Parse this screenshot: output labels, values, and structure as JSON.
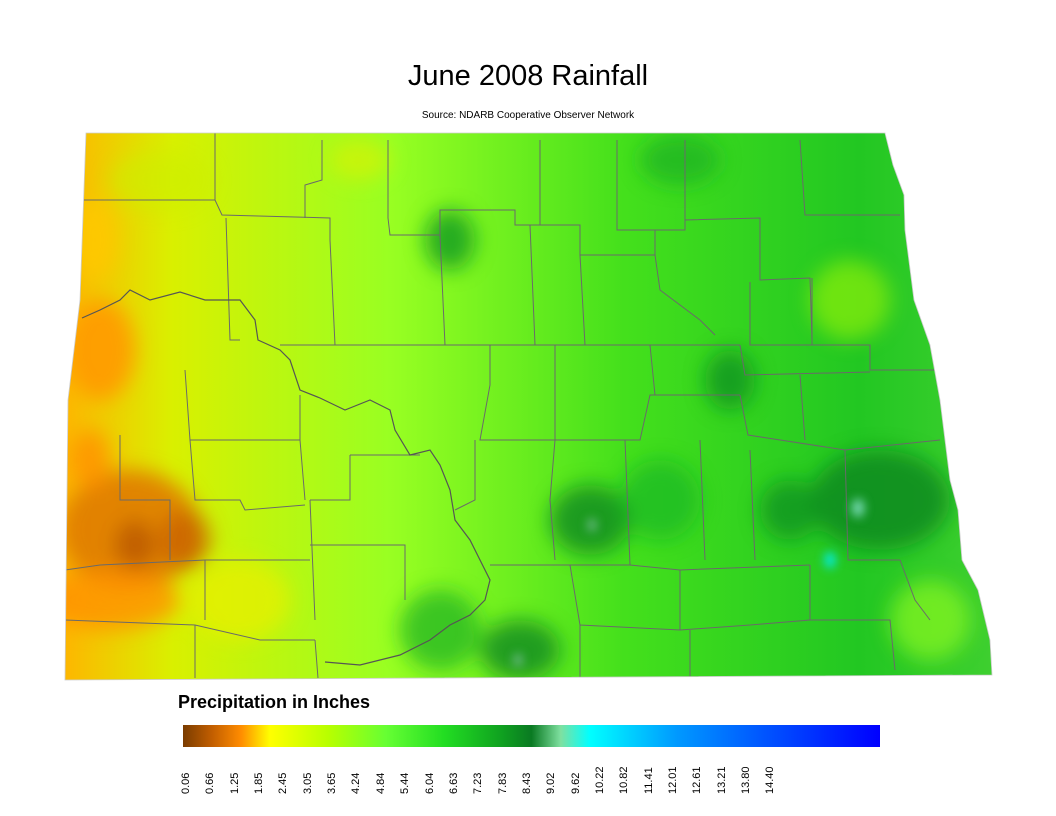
{
  "map": {
    "title": "June 2008 Rainfall",
    "subtitle": "Source: NDARB Cooperative Observer Network",
    "region_name": "North Dakota"
  },
  "legend": {
    "title": "Precipitation in Inches",
    "ticks": [
      "0.06",
      "0.66",
      "1.25",
      "1.85",
      "2.45",
      "3.05",
      "3.65",
      "4.24",
      "4.84",
      "5.44",
      "6.04",
      "6.63",
      "7.23",
      "7.83",
      "8.43",
      "9.02",
      "9.62",
      "10.22",
      "10.82",
      "11.41",
      "12.01",
      "12.61",
      "13.21",
      "13.80",
      "14.40"
    ],
    "color_stops": [
      {
        "value": 0.06,
        "color": "#7a3c00"
      },
      {
        "value": 0.66,
        "color": "#c25e00"
      },
      {
        "value": 1.25,
        "color": "#ff8c00"
      },
      {
        "value": 1.85,
        "color": "#ffff00"
      },
      {
        "value": 3.05,
        "color": "#b8ff00"
      },
      {
        "value": 4.24,
        "color": "#66ff33"
      },
      {
        "value": 5.44,
        "color": "#22dd22"
      },
      {
        "value": 6.63,
        "color": "#0fa020"
      },
      {
        "value": 7.23,
        "color": "#0a7a22"
      },
      {
        "value": 7.83,
        "color": "#7fe0a0"
      },
      {
        "value": 8.43,
        "color": "#00ffff"
      },
      {
        "value": 10.22,
        "color": "#0099ff"
      },
      {
        "value": 12.01,
        "color": "#0055ff"
      },
      {
        "value": 14.4,
        "color": "#0000ff"
      }
    ]
  }
}
